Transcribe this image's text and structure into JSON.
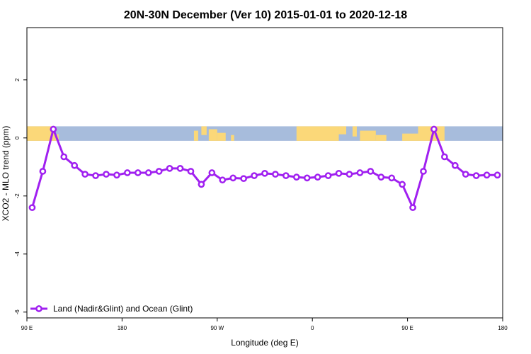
{
  "chart_data": {
    "type": "line",
    "title": "20N-30N December (Ver 10)   2015-01-01 to 2020-12-18",
    "xlabel": "Longitude (deg E)",
    "ylabel": "XCO2 - MLO trend (ppm)",
    "xlim": [
      90,
      540
    ],
    "ylim": [
      -6.2,
      3.8
    ],
    "x_ticks": [
      {
        "value": 90,
        "label": "90 E"
      },
      {
        "value": 180,
        "label": "180"
      },
      {
        "value": 270,
        "label": "90 W"
      },
      {
        "value": 360,
        "label": "0"
      },
      {
        "value": 450,
        "label": "90 E"
      },
      {
        "value": 540,
        "label": "180"
      }
    ],
    "y_ticks": [
      {
        "value": -6,
        "label": "-6"
      },
      {
        "value": -4,
        "label": "-4"
      },
      {
        "value": -2,
        "label": "-2"
      },
      {
        "value": 0,
        "label": "0"
      },
      {
        "value": 2,
        "label": "2"
      }
    ],
    "land_mask_band": {
      "ymin": -0.1,
      "ymax": 0.4,
      "ocean_color": "#a7bcdc",
      "land_color": "#fbd879"
    },
    "legend": {
      "position": "bottom-left",
      "label": "Land (Nadir&Glint) and Ocean (Glint)"
    },
    "series": [
      {
        "name": "Land (Nadir&Glint) and Ocean (Glint)",
        "color": "#a020f0",
        "x": [
          95,
          105,
          115,
          125,
          135,
          145,
          155,
          165,
          175,
          185,
          195,
          205,
          215,
          225,
          235,
          245,
          255,
          265,
          275,
          285,
          295,
          305,
          315,
          325,
          335,
          345,
          355,
          365,
          375,
          385,
          395,
          405,
          415,
          425,
          435,
          445,
          455,
          465,
          475,
          485,
          495,
          505,
          515,
          525,
          535
        ],
        "y": [
          -2.4,
          -1.15,
          0.3,
          -0.65,
          -0.95,
          -1.25,
          -1.3,
          -1.25,
          -1.28,
          -1.2,
          -1.2,
          -1.2,
          -1.15,
          -1.05,
          -1.05,
          -1.15,
          -1.6,
          -1.2,
          -1.45,
          -1.38,
          -1.4,
          -1.3,
          -1.22,
          -1.25,
          -1.3,
          -1.35,
          -1.38,
          -1.35,
          -1.3,
          -1.22,
          -1.25,
          -1.2,
          -1.15,
          -1.35,
          -1.38,
          -1.6,
          -2.4,
          -1.15,
          0.3,
          -0.65,
          -0.95,
          -1.25,
          -1.3,
          -1.28,
          -1.28
        ]
      }
    ]
  }
}
